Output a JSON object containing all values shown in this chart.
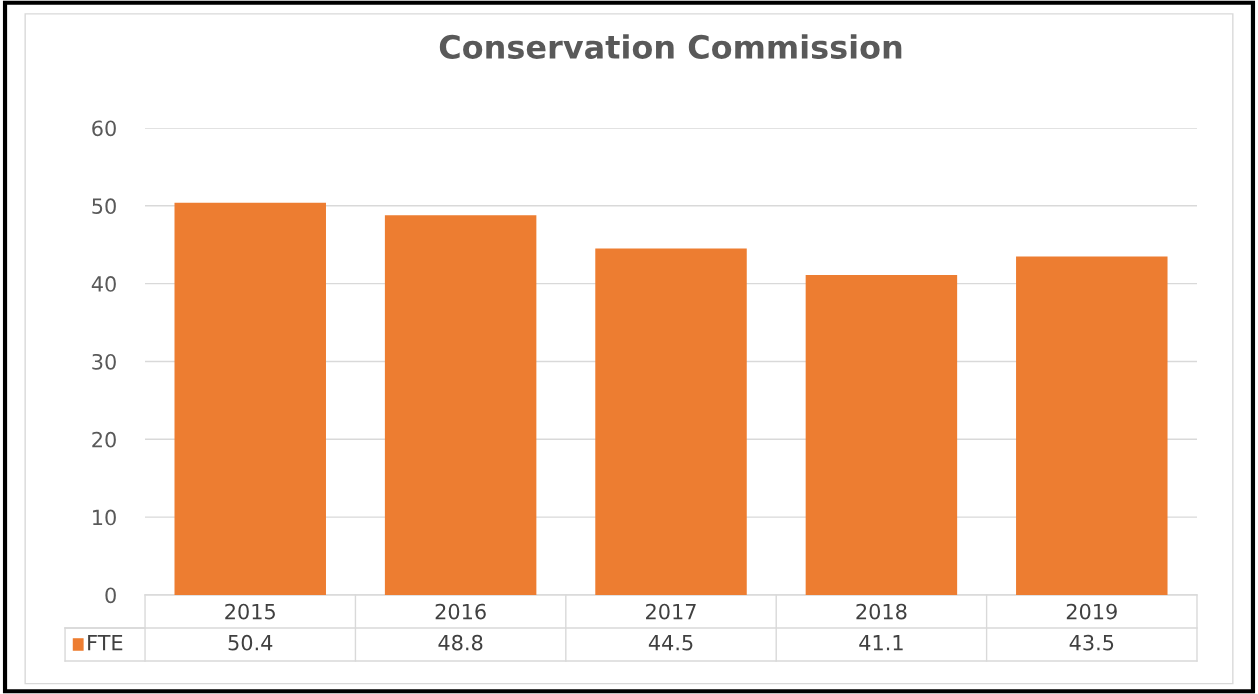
{
  "chart_data": {
    "type": "bar",
    "title": "Conservation Commission",
    "categories": [
      "2015",
      "2016",
      "2017",
      "2018",
      "2019"
    ],
    "series": [
      {
        "name": "FTE",
        "color": "#ed7d31",
        "values": [
          50.4,
          48.8,
          44.5,
          41.1,
          43.5
        ]
      }
    ],
    "ylim": [
      0,
      60
    ],
    "yticks": [
      0,
      10,
      20,
      30,
      40,
      50,
      60
    ],
    "grid": "y",
    "data_labels": true,
    "legend": "bottom"
  }
}
